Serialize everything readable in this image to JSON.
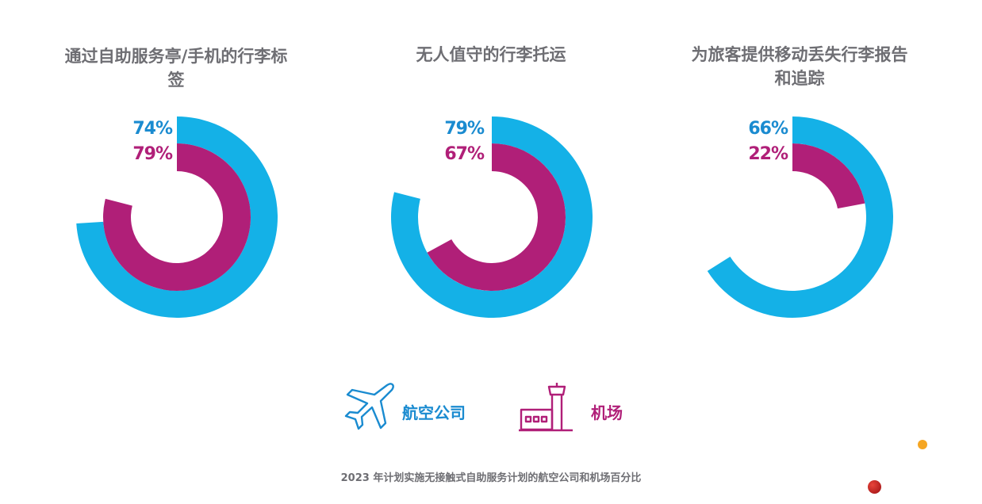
{
  "colors": {
    "airline": "#14b1e7",
    "airport": "#b01f78",
    "title_text": "#6e6e73"
  },
  "legend": {
    "airline": {
      "label": "航空公司",
      "icon": "airplane-icon"
    },
    "airport": {
      "label": "机场",
      "icon": "control-tower-icon"
    }
  },
  "footnote": "2023 年计划实施无接触式自助服务计划的航空公司和机场百分比",
  "chart_data": [
    {
      "type": "radial-bar",
      "title": "通过自助服务亭/手机的行李标签",
      "series": [
        {
          "name": "航空公司",
          "value": 74,
          "label": "74%"
        },
        {
          "name": "机场",
          "value": 79,
          "label": "79%"
        }
      ],
      "max": 100
    },
    {
      "type": "radial-bar",
      "title": "无人值守的行李托运",
      "series": [
        {
          "name": "航空公司",
          "value": 79,
          "label": "79%"
        },
        {
          "name": "机场",
          "value": 67,
          "label": "67%"
        }
      ],
      "max": 100
    },
    {
      "type": "radial-bar",
      "title": "为旅客提供移动丢失行李报告和追踪",
      "series": [
        {
          "name": "航空公司",
          "value": 66,
          "label": "66%"
        },
        {
          "name": "机场",
          "value": 22,
          "label": "22%"
        }
      ],
      "max": 100
    }
  ]
}
